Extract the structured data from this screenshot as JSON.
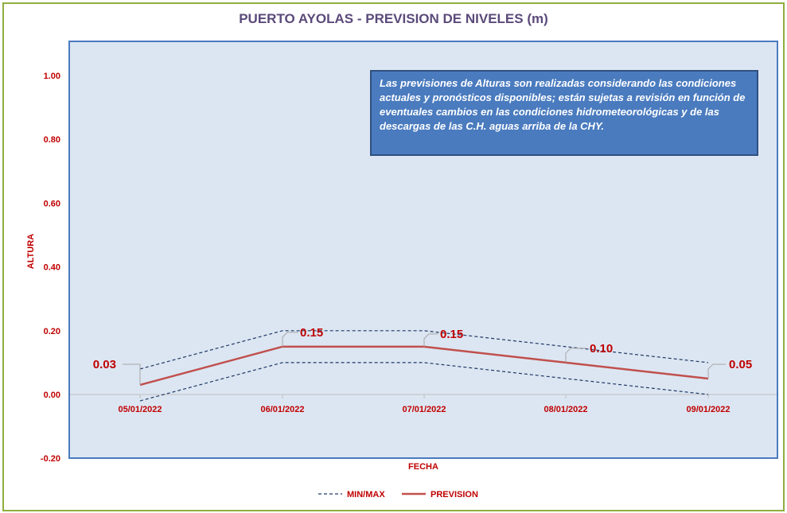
{
  "chart_data": {
    "type": "line",
    "title": "PUERTO AYOLAS - PREVISION DE NIVELES (m)",
    "xlabel": "FECHA",
    "ylabel": "ALTURA",
    "categories": [
      "05/01/2022",
      "06/01/2022",
      "07/01/2022",
      "08/01/2022",
      "09/01/2022"
    ],
    "ylim": [
      -0.2,
      1.1
    ],
    "yticks": [
      -0.2,
      0.0,
      0.2,
      0.4,
      0.6,
      0.8,
      1.0
    ],
    "ytick_labels": [
      "-0.20",
      "0.00",
      "0.20",
      "0.40",
      "0.60",
      "0.80",
      "1.00"
    ],
    "series": [
      {
        "name": "PREVISION",
        "values": [
          0.03,
          0.15,
          0.15,
          0.1,
          0.05
        ],
        "labels": [
          "0.03",
          "0.15",
          "0.15",
          "0.10",
          "0.05"
        ],
        "color": "#c0504d",
        "style": "solid"
      },
      {
        "name": "MIN/MAX",
        "role": "max",
        "values": [
          0.08,
          0.2,
          0.2,
          0.15,
          0.1
        ],
        "color": "#1f3864",
        "style": "dashed"
      },
      {
        "name": "MIN/MAX",
        "role": "min",
        "values": [
          -0.02,
          0.1,
          0.1,
          0.05,
          0.0
        ],
        "color": "#1f3864",
        "style": "dashed"
      }
    ],
    "grid": false,
    "legend_position": "bottom-center",
    "annotation": "Las previsiones de Alturas son realizadas considerando las condiciones actuales y pronósticos disponibles;  están sujetas a revisión en función de eventuales cambios en las condiciones hidrometeorológicas y de las descargas de las C.H. aguas arriba de la CHY.",
    "colors": {
      "plot_background": "#dce6f2",
      "plot_border": "#4a7bbf",
      "frame_border": "#8fae3f",
      "title": "#5b4a7a",
      "labels": "#c00000",
      "note_background": "#4a7bbf"
    }
  },
  "legend": {
    "minmax": "MIN/MAX",
    "prevision": "PREVISION"
  }
}
